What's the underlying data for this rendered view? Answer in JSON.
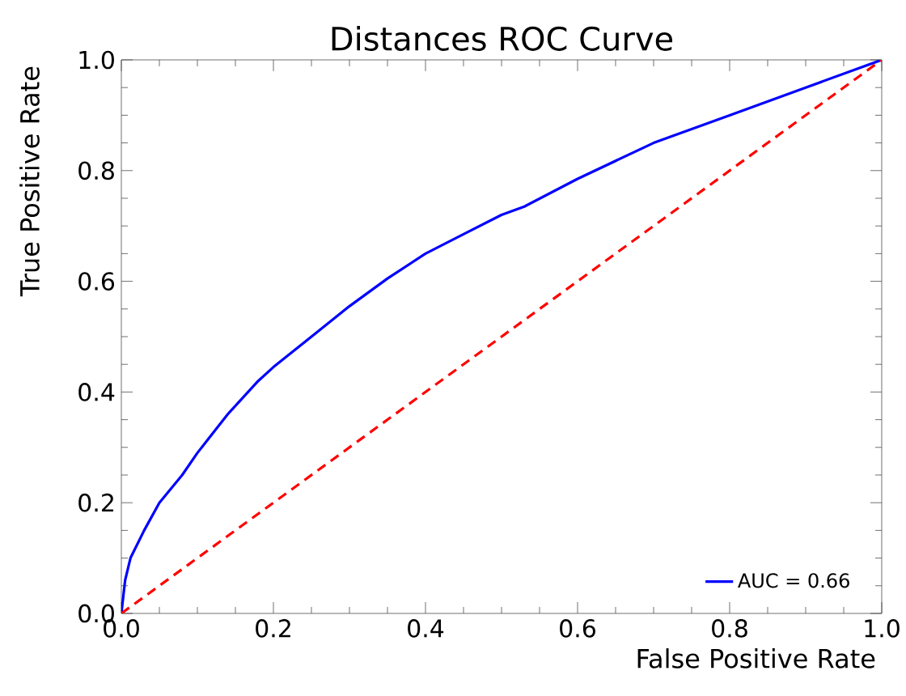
{
  "chart_data": {
    "type": "line",
    "title": "Distances ROC Curve",
    "xlabel": "False Positive Rate",
    "ylabel": "True Positive Rate",
    "xlim": [
      0,
      1
    ],
    "ylim": [
      0,
      1
    ],
    "xticks": [
      {
        "value": 0,
        "label": "0.0"
      },
      0.2,
      0.4,
      0.6,
      0.8,
      {
        "value": 1,
        "label": "1.0"
      }
    ],
    "yticks": [
      {
        "value": 0,
        "label": "0.0"
      },
      0.2,
      0.4,
      0.6,
      0.8,
      {
        "value": 1,
        "label": "1.0"
      }
    ],
    "legend": "bottom right",
    "series": [
      {
        "name": "AUC = 0.66",
        "color": "#0000ff",
        "line_style": "solid",
        "x": [
          0,
          0.005,
          0.012,
          0.03,
          0.05,
          0.08,
          0.1,
          0.14,
          0.18,
          0.2,
          0.25,
          0.3,
          0.35,
          0.4,
          0.45,
          0.5,
          0.53,
          0.6,
          0.7,
          0.8,
          0.9,
          1
        ],
        "values": [
          0,
          0.06,
          0.1,
          0.15,
          0.2,
          0.25,
          0.29,
          0.36,
          0.42,
          0.445,
          0.5,
          0.555,
          0.605,
          0.65,
          0.685,
          0.72,
          0.735,
          0.785,
          0.85,
          0.9,
          0.95,
          1
        ]
      },
      {
        "color": "#ff0000",
        "line_style": "dashed",
        "x": [
          0,
          1
        ],
        "values": [
          0,
          1
        ]
      }
    ]
  }
}
